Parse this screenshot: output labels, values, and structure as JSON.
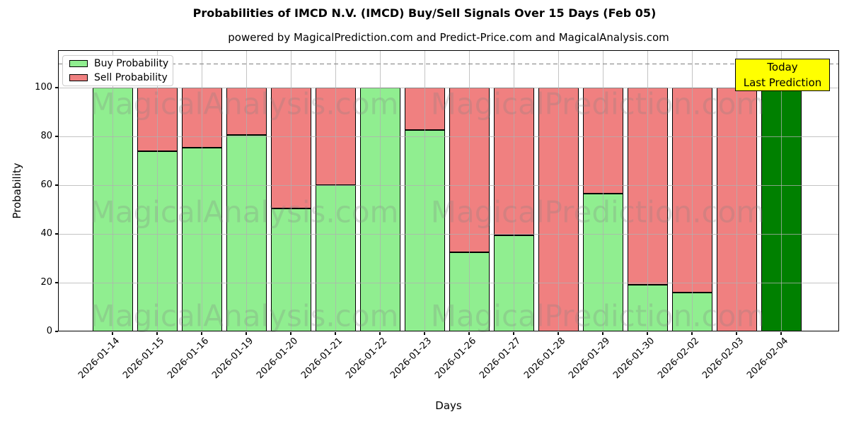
{
  "header": {
    "title": "Probabilities of IMCD N.V. (IMCD) Buy/Sell Signals Over 15 Days (Feb 05)",
    "subtitle": "powered by MagicalPrediction.com and Predict-Price.com and MagicalAnalysis.com"
  },
  "legend": {
    "items": [
      {
        "label": "Buy Probability",
        "color": "#90EE90"
      },
      {
        "label": "Sell Probability",
        "color": "#F08080"
      }
    ]
  },
  "annotation": {
    "line1": "Today",
    "line2": "Last Prediction",
    "bg_color": "#FFFF00",
    "border_color": "#000000"
  },
  "watermarks": {
    "left_text": "MagicalAnalysis.com",
    "right_text": "MagicalPrediction.com",
    "color": "#808080"
  },
  "chart_data": {
    "type": "bar",
    "stacked": true,
    "title": "Probabilities of IMCD N.V. (IMCD) Buy/Sell Signals Over 15 Days (Feb 05)",
    "xlabel": "Days",
    "ylabel": "Probability",
    "ylim": [
      0,
      115
    ],
    "yticks": [
      0,
      20,
      40,
      60,
      80,
      100
    ],
    "dashed_line_y": 110,
    "grid": true,
    "legend_position": "upper left",
    "categories": [
      "2026-01-14",
      "2026-01-15",
      "2026-01-16",
      "2026-01-19",
      "2026-01-20",
      "2026-01-21",
      "2026-01-22",
      "2026-01-23",
      "2026-01-26",
      "2026-01-27",
      "2026-01-28",
      "2026-01-29",
      "2026-01-30",
      "2026-02-02",
      "2026-02-03",
      "2026-02-04"
    ],
    "series": [
      {
        "name": "Buy Probability",
        "color": "#90EE90",
        "values": [
          100,
          74,
          75.5,
          80.5,
          50.5,
          60,
          100,
          82.5,
          32.5,
          39.5,
          0,
          56.5,
          19,
          16,
          0,
          0
        ]
      },
      {
        "name": "Sell Probability",
        "color": "#F08080",
        "values": [
          0,
          26,
          24.5,
          19.5,
          49.5,
          40,
          0,
          17.5,
          67.5,
          60.5,
          100,
          43.5,
          81,
          84,
          100,
          0
        ]
      },
      {
        "name": "Today / Last Prediction",
        "color": "#008000",
        "values": [
          0,
          0,
          0,
          0,
          0,
          0,
          0,
          0,
          0,
          0,
          0,
          0,
          0,
          0,
          0,
          100
        ]
      }
    ],
    "edge_color": "#000000",
    "grid_color": "#B0B0B0",
    "dash_color": "#7F7F7F"
  }
}
